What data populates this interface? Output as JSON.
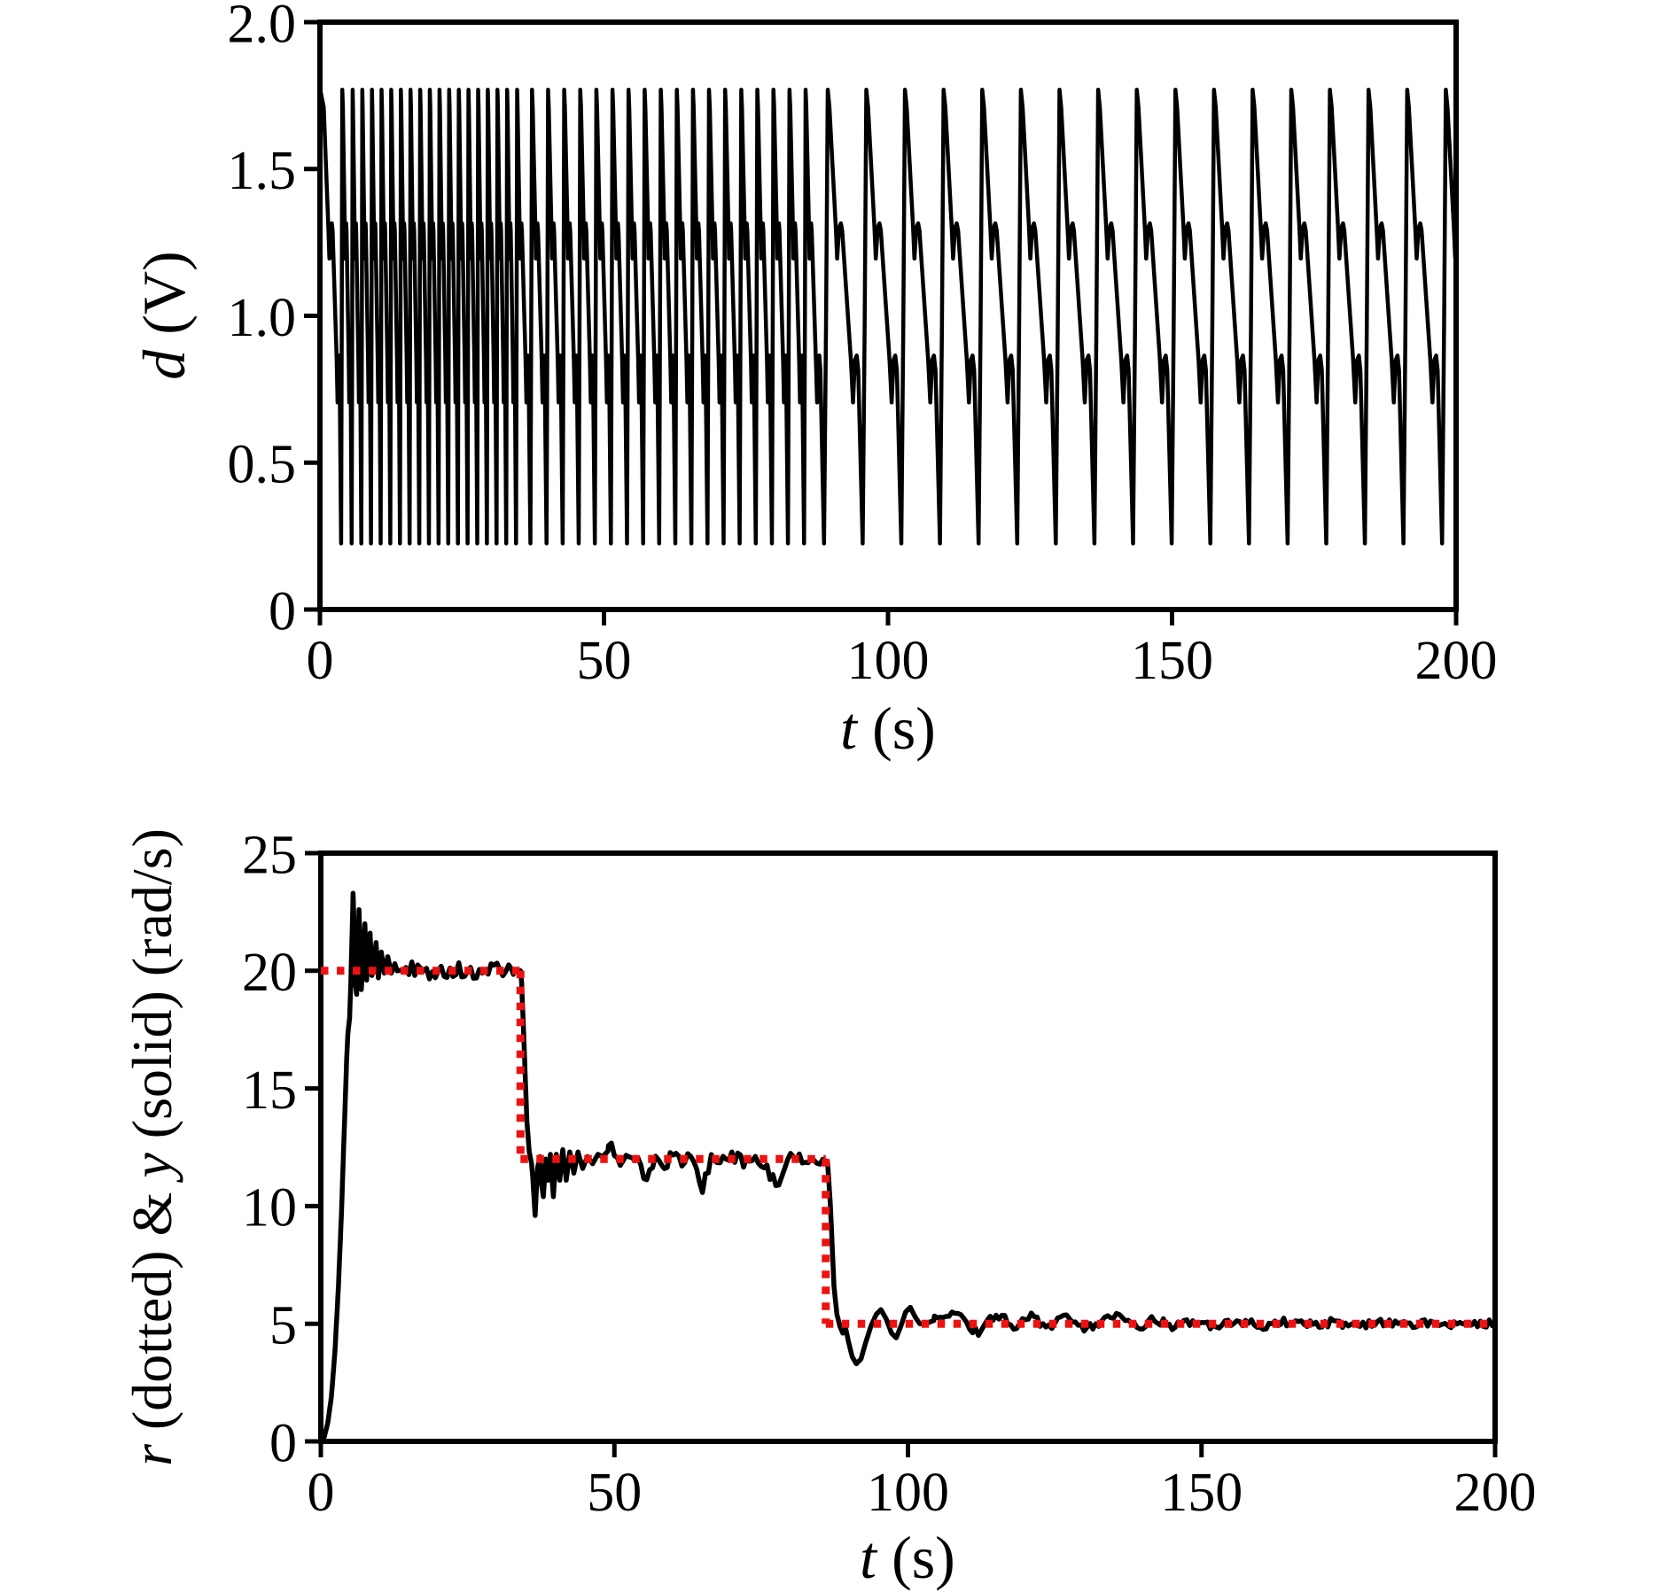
{
  "figure": {
    "background": "#ffffff",
    "line_black": "#000000",
    "line_red": "#ed1111"
  },
  "chart_data": [
    {
      "type": "line",
      "panel": "top",
      "xlabel": "t (s)",
      "xlabel_parts": [
        {
          "italic": true,
          "text": "t"
        },
        {
          "italic": false,
          "text": " (s)"
        }
      ],
      "ylabel": "d (V)",
      "ylabel_parts": [
        {
          "italic": true,
          "text": "d"
        },
        {
          "italic": false,
          "text": " (V)"
        }
      ],
      "xlim": [
        0,
        200
      ],
      "ylim": [
        0,
        2.0
      ],
      "x_tick_values": [
        0,
        50,
        100,
        150,
        200
      ],
      "x_tick_labels": [
        "0",
        "50",
        "100",
        "150",
        "200"
      ],
      "y_tick_values": [
        0,
        0.5,
        1.0,
        1.5,
        2.0
      ],
      "y_tick_labels": [
        "0",
        "0.5",
        "1.0",
        "1.5",
        "2.0"
      ],
      "grid": false,
      "box": true,
      "series": [
        {
          "name": "d",
          "color": "#000000",
          "line_style": "solid",
          "line_width": 4.5,
          "signal": {
            "kind": "frequency-modulated relaxation oscillation (motor drive voltage)",
            "v_min": 0.22,
            "v_max": 1.77,
            "cycle_shape_phase_value": [
              [
                0,
                1.77
              ],
              [
                0.045,
                1.71
              ],
              [
                0.21,
                1.3
              ],
              [
                0.245,
                1.195
              ],
              [
                0.295,
                1.3
              ],
              [
                0.34,
                1.315
              ],
              [
                0.375,
                1.29
              ],
              [
                0.6,
                0.85
              ],
              [
                0.655,
                0.705
              ],
              [
                0.705,
                0.85
              ],
              [
                0.75,
                0.865
              ],
              [
                0.79,
                0.815
              ],
              [
                0.905,
                0.225
              ],
              [
                0.955,
                0.95
              ]
            ],
            "omega_profile_t_radps": [
              [
                0,
                0
              ],
              [
                5,
                20
              ],
              [
                34,
                20
              ],
              [
                35.8,
                12
              ],
              [
                86.3,
                12
              ],
              [
                88.8,
                5
              ],
              [
                200,
                5
              ]
            ],
            "omega_min_clamp": 2.5,
            "period_formula": "T_seconds = 34 / omega",
            "initial_phase": 0.996
          }
        }
      ]
    },
    {
      "type": "line",
      "panel": "bottom",
      "xlabel": "t (s)",
      "xlabel_parts": [
        {
          "italic": true,
          "text": "t"
        },
        {
          "italic": false,
          "text": " (s)"
        }
      ],
      "ylabel": "r (dotted) & y (solid) (rad/s)",
      "ylabel_parts": [
        {
          "italic": true,
          "text": "r"
        },
        {
          "italic": false,
          "text": " (dotted) & "
        },
        {
          "italic": true,
          "text": "y"
        },
        {
          "italic": false,
          "text": " (solid) (rad/s)"
        }
      ],
      "xlim": [
        0,
        200
      ],
      "ylim": [
        0,
        25
      ],
      "x_tick_values": [
        0,
        50,
        100,
        150,
        200
      ],
      "x_tick_labels": [
        "0",
        "50",
        "100",
        "150",
        "200"
      ],
      "y_tick_values": [
        0,
        5,
        10,
        15,
        20,
        25
      ],
      "y_tick_labels": [
        "0",
        "5",
        "10",
        "15",
        "20",
        "25"
      ],
      "grid": false,
      "box": true,
      "series": [
        {
          "name": "y",
          "role": "measured speed (solid black)",
          "color": "#000000",
          "line_style": "solid",
          "line_width": 5.5,
          "keypoints_t_value": [
            [
              0,
              0
            ],
            [
              0.6,
              0.2
            ],
            [
              1.2,
              0.8
            ],
            [
              1.8,
              1.9
            ],
            [
              2.4,
              3.8
            ],
            [
              3.0,
              6.6
            ],
            [
              3.5,
              9.6
            ],
            [
              4.0,
              13.3
            ],
            [
              4.4,
              16.2
            ],
            [
              4.6,
              17.3
            ],
            [
              4.9,
              18.0
            ],
            [
              5.1,
              19.4
            ],
            [
              5.3,
              21.3
            ],
            [
              5.5,
              23.3
            ],
            [
              5.7,
              21.6
            ],
            [
              5.9,
              19.4
            ],
            [
              6.1,
              19.0
            ],
            [
              6.3,
              20.4
            ],
            [
              6.5,
              22.6
            ],
            [
              6.7,
              21.0
            ],
            [
              6.9,
              19.2
            ],
            [
              7.2,
              20.6
            ],
            [
              7.5,
              22.0
            ],
            [
              7.8,
              19.6
            ],
            [
              8.1,
              20.9
            ],
            [
              8.4,
              21.6
            ],
            [
              8.7,
              19.8
            ],
            [
              9.0,
              20.2
            ],
            [
              9.4,
              21.2
            ],
            [
              9.8,
              19.7
            ],
            [
              10.3,
              20.8
            ],
            [
              10.8,
              19.9
            ],
            [
              11.4,
              20.6
            ],
            [
              12.0,
              19.9
            ],
            [
              12.6,
              20.3
            ],
            [
              13.0,
              20.0
            ],
            [
              16,
              20.1
            ],
            [
              20,
              19.9
            ],
            [
              24,
              20.05
            ],
            [
              28,
              19.95
            ],
            [
              31,
              20.05
            ],
            [
              33,
              19.95
            ],
            [
              34.0,
              20.0
            ],
            [
              34.2,
              19.5
            ],
            [
              34.6,
              17.0
            ],
            [
              35.1,
              13.6
            ],
            [
              35.5,
              12.3
            ],
            [
              35.9,
              11.8
            ],
            [
              36.1,
              11.2
            ],
            [
              36.5,
              9.6
            ],
            [
              36.9,
              11.6
            ],
            [
              37.3,
              12.1
            ],
            [
              37.6,
              10.9
            ],
            [
              37.9,
              10.4
            ],
            [
              38.3,
              12.0
            ],
            [
              38.7,
              11.1
            ],
            [
              39.1,
              12.2
            ],
            [
              39.6,
              10.4
            ],
            [
              40.1,
              12.2
            ],
            [
              40.7,
              11.1
            ],
            [
              41.2,
              12.4
            ],
            [
              41.8,
              11.1
            ],
            [
              42.4,
              12.3
            ],
            [
              43.1,
              11.4
            ],
            [
              43.8,
              12.3
            ],
            [
              44.6,
              11.6
            ],
            [
              45.4,
              12.1
            ],
            [
              46.3,
              11.8
            ],
            [
              47.2,
              12.2
            ],
            [
              48,
              12.1
            ],
            [
              49.5,
              12.5
            ],
            [
              51,
              11.8
            ],
            [
              52.5,
              12.2
            ],
            [
              54,
              11.9
            ],
            [
              55.5,
              11.0
            ],
            [
              57,
              12.2
            ],
            [
              58.5,
              11.7
            ],
            [
              60,
              12.3
            ],
            [
              61.5,
              11.9
            ],
            [
              63,
              12.1
            ],
            [
              65,
              10.8
            ],
            [
              66.5,
              12.1
            ],
            [
              68,
              11.9
            ],
            [
              70,
              12.2
            ],
            [
              72,
              11.8
            ],
            [
              74,
              12.1
            ],
            [
              76,
              11.5
            ],
            [
              78,
              10.9
            ],
            [
              79.5,
              12.1
            ],
            [
              81,
              11.9
            ],
            [
              83,
              12.1
            ],
            [
              85,
              12.0
            ],
            [
              86.3,
              11.9
            ],
            [
              86.8,
              10.0
            ],
            [
              87.4,
              6.6
            ],
            [
              87.9,
              5.4
            ],
            [
              88.4,
              4.9
            ],
            [
              88.9,
              4.6
            ],
            [
              89.4,
              4.8
            ],
            [
              89.9,
              4.2
            ],
            [
              90.5,
              3.6
            ],
            [
              91.2,
              3.3
            ],
            [
              92.0,
              3.5
            ],
            [
              92.8,
              4.2
            ],
            [
              93.7,
              4.9
            ],
            [
              94.6,
              5.4
            ],
            [
              95.4,
              5.6
            ],
            [
              96.3,
              5.2
            ],
            [
              97.2,
              4.6
            ],
            [
              98.0,
              4.4
            ],
            [
              98.8,
              4.9
            ],
            [
              99.6,
              5.5
            ],
            [
              100.4,
              5.7
            ],
            [
              101.2,
              5.3
            ],
            [
              102.0,
              5.0
            ],
            [
              103.0,
              5.0
            ],
            [
              106,
              5.3
            ],
            [
              108,
              5.6
            ],
            [
              110,
              4.9
            ],
            [
              112,
              4.6
            ],
            [
              114,
              5.2
            ],
            [
              116,
              5.4
            ],
            [
              118,
              4.9
            ],
            [
              121,
              5.3
            ],
            [
              124,
              4.8
            ],
            [
              127,
              5.5
            ],
            [
              130,
              4.7
            ],
            [
              133,
              5.1
            ],
            [
              136,
              5.3
            ],
            [
              139,
              4.8
            ],
            [
              142,
              5.2
            ],
            [
              145,
              4.9
            ],
            [
              148,
              5.1
            ],
            [
              152,
              4.85
            ],
            [
              156,
              5.15
            ],
            [
              160,
              4.9
            ],
            [
              164,
              5.1
            ],
            [
              168,
              4.95
            ],
            [
              172,
              5.05
            ],
            [
              176,
              4.9
            ],
            [
              180,
              5.1
            ],
            [
              184,
              4.95
            ],
            [
              188,
              5.05
            ],
            [
              192,
              4.95
            ],
            [
              196,
              5.05
            ],
            [
              200,
              5.0
            ]
          ],
          "noise": {
            "seed": 123457,
            "grid_dt": 0.5,
            "windows_t0_t1_amp": [
              [
                14,
                32.8,
                0.32
              ],
              [
                49,
                85.6,
                0.27
              ],
              [
                104.5,
                200,
                0.18
              ]
            ]
          }
        },
        {
          "name": "r",
          "role": "reference speed (dotted red)",
          "color": "#ed1111",
          "line_style": "dotted",
          "line_width": 9,
          "dash": [
            8.5,
            9.5
          ],
          "steps_t0_t1_value": [
            [
              0,
              34,
              20
            ],
            [
              34,
              86,
              12
            ],
            [
              86,
              200,
              5
            ]
          ]
        }
      ]
    }
  ]
}
